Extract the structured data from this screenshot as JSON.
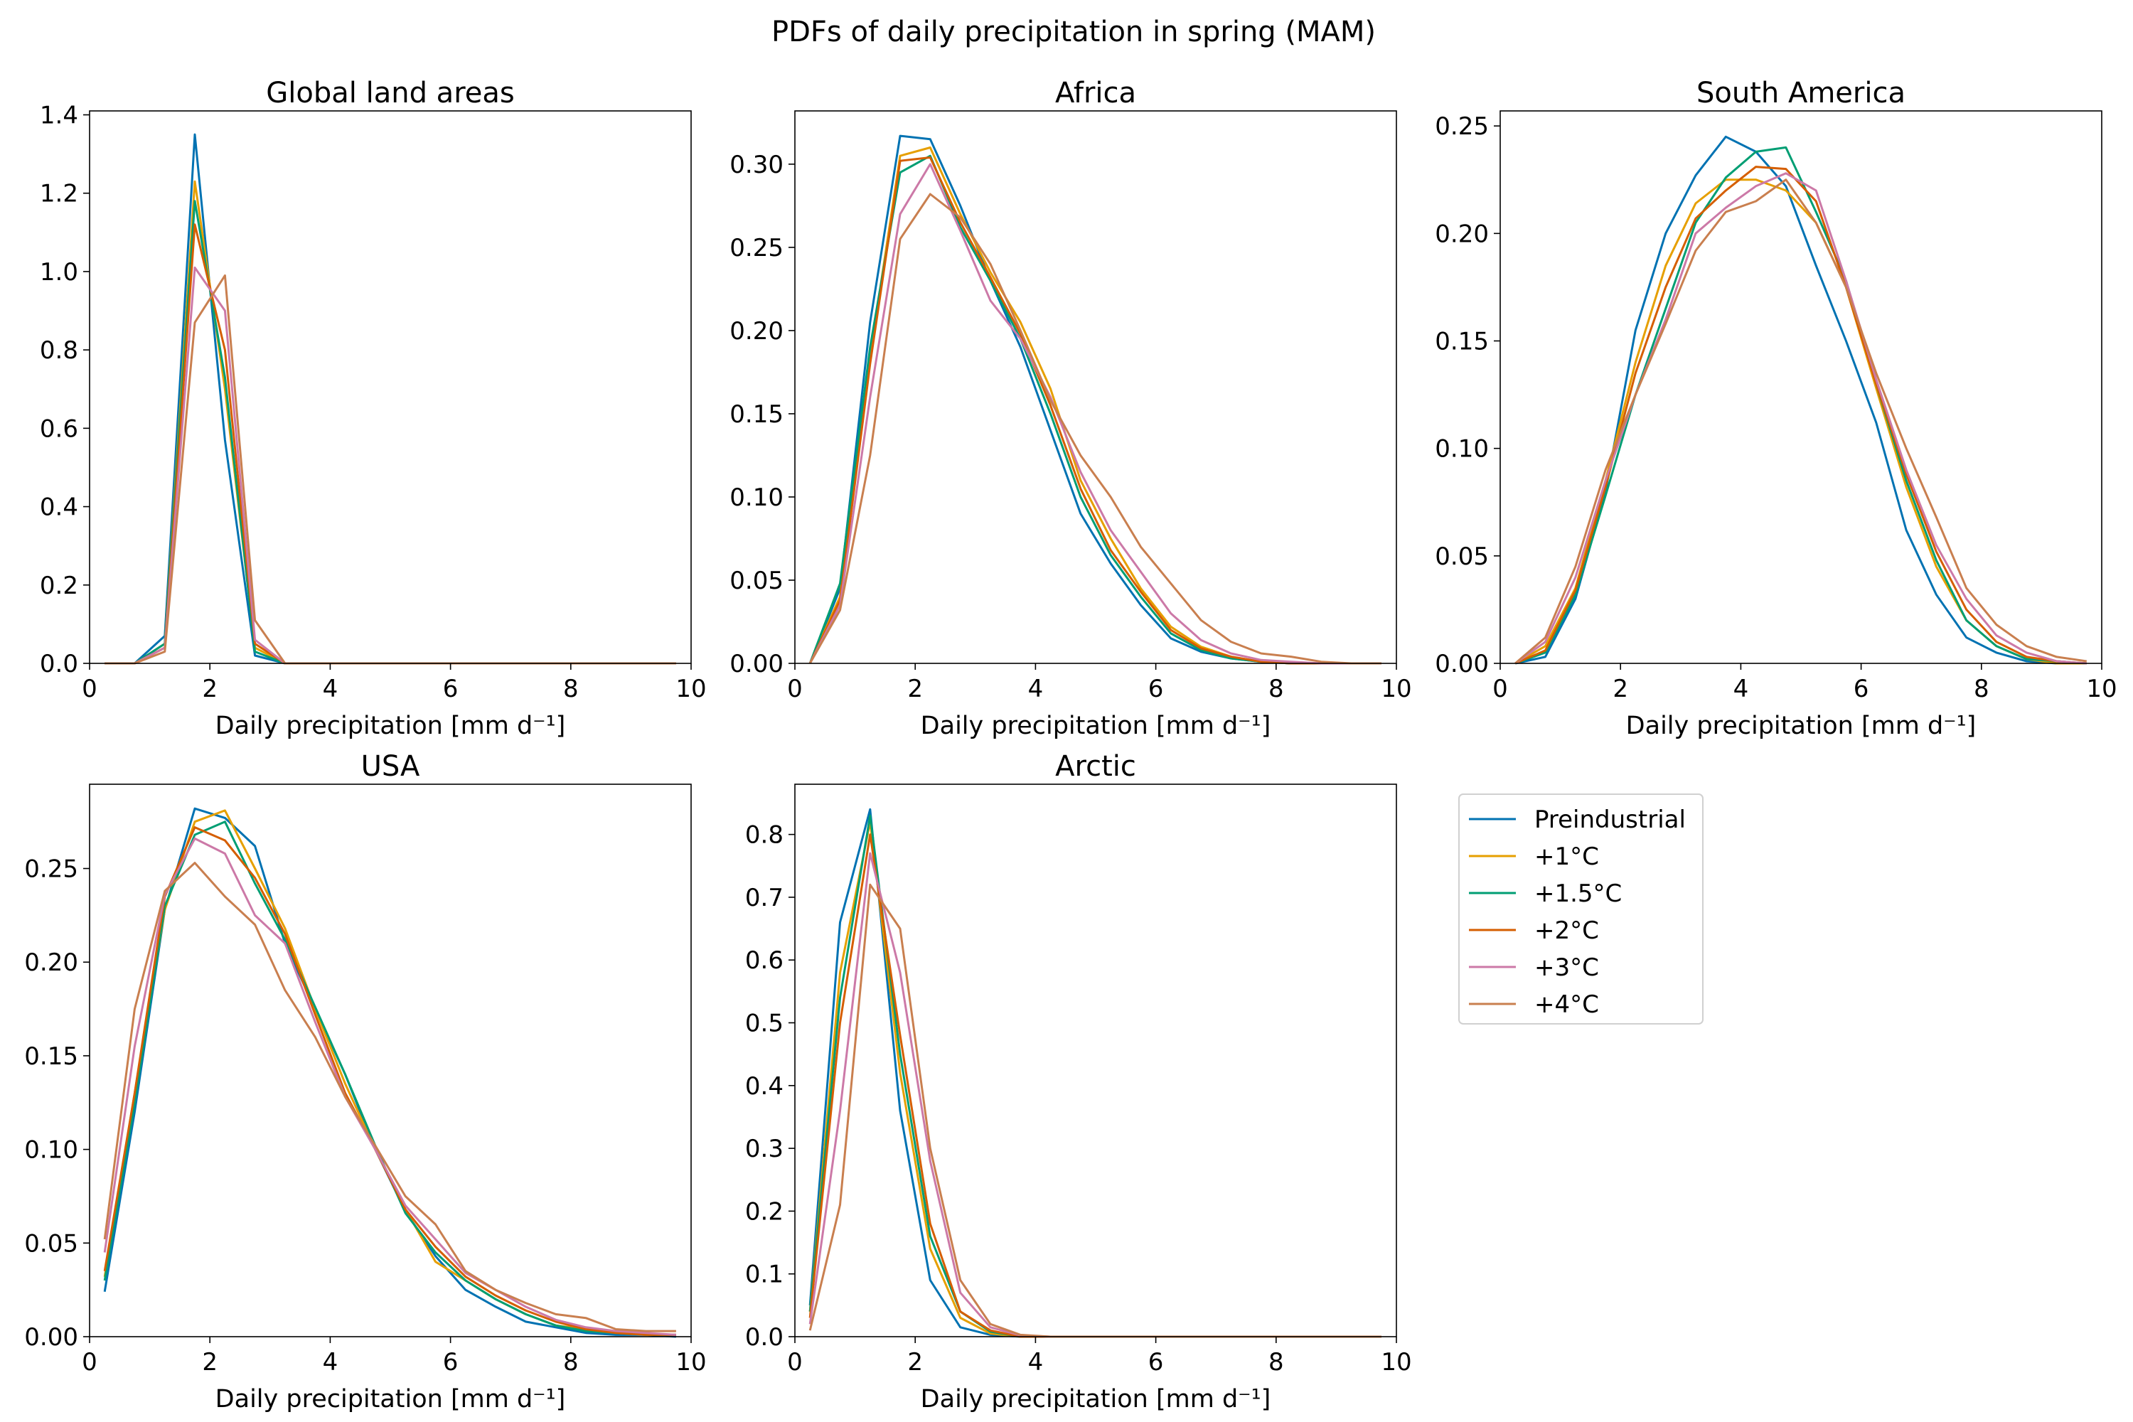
{
  "figure": {
    "title": "PDFs of daily precipitation in spring (MAM)"
  },
  "colors": {
    "Preindustrial": "#0072B2",
    "+1°C": "#E69F00",
    "+1.5°C": "#009E73",
    "+2°C": "#D55E00",
    "+3°C": "#CC79A7",
    "+4°C": "#C97F4F"
  },
  "legend": {
    "entries": [
      "Preindustrial",
      "+1°C",
      "+1.5°C",
      "+2°C",
      "+3°C",
      "+4°C"
    ],
    "placement": "right of Arctic panel"
  },
  "chart_data": [
    {
      "type": "line",
      "title": "Global land areas",
      "xlabel": "Daily precipitation [mm d⁻¹]",
      "ylabel": "",
      "xlim": [
        0,
        10
      ],
      "ylim": [
        0,
        1.41
      ],
      "xticks": [
        0,
        2,
        4,
        6,
        8,
        10
      ],
      "yticks": [
        0.0,
        0.2,
        0.4,
        0.6,
        0.8,
        1.0,
        1.2,
        1.4
      ],
      "ytick_labels": [
        "0.0",
        "0.2",
        "0.4",
        "0.6",
        "0.8",
        "1.0",
        "1.2",
        "1.4"
      ],
      "x": [
        0.25,
        0.75,
        1.25,
        1.75,
        2.25,
        2.75,
        3.25,
        3.75,
        4.25,
        4.75,
        5.25,
        5.75,
        6.25,
        6.75,
        7.25,
        7.75,
        8.25,
        8.75,
        9.25,
        9.75
      ],
      "series": [
        {
          "name": "Preindustrial",
          "values": [
            0,
            0,
            0.07,
            1.35,
            0.57,
            0.02,
            0,
            0,
            0,
            0,
            0,
            0,
            0,
            0,
            0,
            0,
            0,
            0,
            0,
            0
          ]
        },
        {
          "name": "+1°C",
          "values": [
            0,
            0,
            0.05,
            1.23,
            0.7,
            0.04,
            0,
            0,
            0,
            0,
            0,
            0,
            0,
            0,
            0,
            0,
            0,
            0,
            0,
            0
          ]
        },
        {
          "name": "+1.5°C",
          "values": [
            0,
            0,
            0.05,
            1.18,
            0.73,
            0.03,
            0,
            0,
            0,
            0,
            0,
            0,
            0,
            0,
            0,
            0,
            0,
            0,
            0,
            0
          ]
        },
        {
          "name": "+2°C",
          "values": [
            0,
            0,
            0.04,
            1.12,
            0.8,
            0.05,
            0,
            0,
            0,
            0,
            0,
            0,
            0,
            0,
            0,
            0,
            0,
            0,
            0,
            0
          ]
        },
        {
          "name": "+3°C",
          "values": [
            0,
            0,
            0.04,
            1.01,
            0.9,
            0.06,
            0,
            0,
            0,
            0,
            0,
            0,
            0,
            0,
            0,
            0,
            0,
            0,
            0,
            0
          ]
        },
        {
          "name": "+4°C",
          "values": [
            0,
            0,
            0.03,
            0.87,
            0.99,
            0.11,
            0,
            0,
            0,
            0,
            0,
            0,
            0,
            0,
            0,
            0,
            0,
            0,
            0,
            0
          ]
        }
      ]
    },
    {
      "type": "line",
      "title": "Africa",
      "xlabel": "Daily precipitation [mm d⁻¹]",
      "ylabel": "",
      "xlim": [
        0,
        10
      ],
      "ylim": [
        0,
        0.332
      ],
      "xticks": [
        0,
        2,
        4,
        6,
        8,
        10
      ],
      "yticks": [
        0.0,
        0.05,
        0.1,
        0.15,
        0.2,
        0.25,
        0.3
      ],
      "ytick_labels": [
        "0.00",
        "0.05",
        "0.10",
        "0.15",
        "0.20",
        "0.25",
        "0.30"
      ],
      "x": [
        0.25,
        0.75,
        1.25,
        1.75,
        2.25,
        2.75,
        3.25,
        3.75,
        4.25,
        4.75,
        5.25,
        5.75,
        6.25,
        6.75,
        7.25,
        7.75,
        8.25,
        8.75,
        9.25,
        9.75
      ],
      "series": [
        {
          "name": "Preindustrial",
          "values": [
            0,
            0.045,
            0.205,
            0.317,
            0.315,
            0.275,
            0.23,
            0.19,
            0.14,
            0.09,
            0.06,
            0.035,
            0.015,
            0.007,
            0.003,
            0.001,
            0,
            0,
            0,
            0
          ]
        },
        {
          "name": "+1°C",
          "values": [
            0,
            0.04,
            0.185,
            0.305,
            0.31,
            0.27,
            0.235,
            0.205,
            0.165,
            0.11,
            0.075,
            0.045,
            0.022,
            0.01,
            0.004,
            0.001,
            0,
            0,
            0,
            0
          ]
        },
        {
          "name": "+1.5°C",
          "values": [
            0,
            0.048,
            0.19,
            0.295,
            0.305,
            0.262,
            0.23,
            0.195,
            0.15,
            0.1,
            0.065,
            0.04,
            0.018,
            0.008,
            0.003,
            0.001,
            0,
            0,
            0,
            0
          ]
        },
        {
          "name": "+2°C",
          "values": [
            0,
            0.038,
            0.18,
            0.302,
            0.304,
            0.265,
            0.232,
            0.198,
            0.155,
            0.105,
            0.068,
            0.043,
            0.02,
            0.009,
            0.004,
            0.001,
            0,
            0,
            0,
            0
          ]
        },
        {
          "name": "+3°C",
          "values": [
            0,
            0.035,
            0.16,
            0.27,
            0.3,
            0.26,
            0.218,
            0.195,
            0.16,
            0.115,
            0.08,
            0.055,
            0.03,
            0.014,
            0.006,
            0.002,
            0.001,
            0,
            0,
            0
          ]
        },
        {
          "name": "+4°C",
          "values": [
            0,
            0.032,
            0.125,
            0.255,
            0.282,
            0.268,
            0.24,
            0.2,
            0.158,
            0.125,
            0.1,
            0.07,
            0.048,
            0.026,
            0.013,
            0.006,
            0.004,
            0.001,
            0,
            0
          ]
        }
      ]
    },
    {
      "type": "line",
      "title": "South America",
      "xlabel": "Daily precipitation [mm d⁻¹]",
      "ylabel": "",
      "xlim": [
        0,
        10
      ],
      "ylim": [
        0,
        0.257
      ],
      "xticks": [
        0,
        2,
        4,
        6,
        8,
        10
      ],
      "yticks": [
        0.0,
        0.05,
        0.1,
        0.15,
        0.2,
        0.25
      ],
      "ytick_labels": [
        "0.00",
        "0.05",
        "0.10",
        "0.15",
        "0.20",
        "0.25"
      ],
      "x": [
        0.25,
        0.75,
        1.25,
        1.75,
        2.25,
        2.75,
        3.25,
        3.75,
        4.25,
        4.75,
        5.25,
        5.75,
        6.25,
        6.75,
        7.25,
        7.75,
        8.25,
        8.75,
        9.25,
        9.75
      ],
      "series": [
        {
          "name": "Preindustrial",
          "values": [
            0,
            0.003,
            0.03,
            0.08,
            0.155,
            0.2,
            0.227,
            0.245,
            0.238,
            0.222,
            0.185,
            0.15,
            0.112,
            0.062,
            0.032,
            0.012,
            0.005,
            0.001,
            0,
            0
          ]
        },
        {
          "name": "+1°C",
          "values": [
            0,
            0.008,
            0.035,
            0.085,
            0.14,
            0.185,
            0.214,
            0.225,
            0.225,
            0.22,
            0.205,
            0.175,
            0.128,
            0.082,
            0.045,
            0.02,
            0.008,
            0.002,
            0,
            0
          ]
        },
        {
          "name": "+1.5°C",
          "values": [
            0,
            0.005,
            0.032,
            0.078,
            0.125,
            0.165,
            0.205,
            0.226,
            0.238,
            0.24,
            0.21,
            0.178,
            0.13,
            0.085,
            0.048,
            0.02,
            0.008,
            0.002,
            0.001,
            0
          ]
        },
        {
          "name": "+2°C",
          "values": [
            0,
            0.006,
            0.034,
            0.082,
            0.135,
            0.175,
            0.207,
            0.22,
            0.231,
            0.23,
            0.215,
            0.175,
            0.13,
            0.088,
            0.052,
            0.025,
            0.01,
            0.003,
            0.001,
            0
          ]
        },
        {
          "name": "+3°C",
          "values": [
            0,
            0.01,
            0.04,
            0.085,
            0.125,
            0.16,
            0.2,
            0.212,
            0.222,
            0.228,
            0.22,
            0.178,
            0.132,
            0.09,
            0.055,
            0.03,
            0.013,
            0.005,
            0.001,
            0
          ]
        },
        {
          "name": "+4°C",
          "values": [
            0,
            0.012,
            0.045,
            0.09,
            0.125,
            0.158,
            0.192,
            0.21,
            0.215,
            0.225,
            0.205,
            0.175,
            0.135,
            0.1,
            0.068,
            0.035,
            0.018,
            0.008,
            0.003,
            0.001
          ]
        }
      ]
    },
    {
      "type": "line",
      "title": "USA",
      "xlabel": "Daily precipitation [mm d⁻¹]",
      "ylabel": "",
      "xlim": [
        0,
        10
      ],
      "ylim": [
        0,
        0.295
      ],
      "xticks": [
        0,
        2,
        4,
        6,
        8,
        10
      ],
      "yticks": [
        0.0,
        0.05,
        0.1,
        0.15,
        0.2,
        0.25
      ],
      "ytick_labels": [
        "0.00",
        "0.05",
        "0.10",
        "0.15",
        "0.20",
        "0.25"
      ],
      "x": [
        0.25,
        0.75,
        1.25,
        1.75,
        2.25,
        2.75,
        3.25,
        3.75,
        4.25,
        4.75,
        5.25,
        5.75,
        6.25,
        6.75,
        7.25,
        7.75,
        8.25,
        8.75,
        9.25,
        9.75
      ],
      "series": [
        {
          "name": "Preindustrial",
          "values": [
            0.024,
            0.12,
            0.228,
            0.282,
            0.277,
            0.262,
            0.21,
            0.175,
            0.14,
            0.1,
            0.067,
            0.043,
            0.025,
            0.016,
            0.008,
            0.005,
            0.002,
            0.001,
            0.001,
            0
          ]
        },
        {
          "name": "+1°C",
          "values": [
            0.032,
            0.13,
            0.228,
            0.275,
            0.281,
            0.25,
            0.218,
            0.175,
            0.135,
            0.1,
            0.068,
            0.04,
            0.03,
            0.02,
            0.012,
            0.006,
            0.004,
            0.002,
            0.001,
            0.001
          ]
        },
        {
          "name": "+1.5°C",
          "values": [
            0.03,
            0.125,
            0.23,
            0.268,
            0.275,
            0.242,
            0.212,
            0.176,
            0.14,
            0.102,
            0.066,
            0.045,
            0.03,
            0.02,
            0.012,
            0.006,
            0.003,
            0.002,
            0.001,
            0.001
          ]
        },
        {
          "name": "+2°C",
          "values": [
            0.035,
            0.13,
            0.235,
            0.272,
            0.265,
            0.245,
            0.215,
            0.172,
            0.13,
            0.1,
            0.068,
            0.048,
            0.032,
            0.022,
            0.014,
            0.008,
            0.004,
            0.002,
            0.001,
            0.001
          ]
        },
        {
          "name": "+3°C",
          "values": [
            0.045,
            0.155,
            0.236,
            0.266,
            0.258,
            0.225,
            0.21,
            0.168,
            0.128,
            0.1,
            0.07,
            0.052,
            0.034,
            0.025,
            0.016,
            0.009,
            0.005,
            0.003,
            0.002,
            0.001
          ]
        },
        {
          "name": "+4°C",
          "values": [
            0.052,
            0.175,
            0.238,
            0.253,
            0.235,
            0.22,
            0.185,
            0.16,
            0.128,
            0.102,
            0.075,
            0.06,
            0.035,
            0.025,
            0.018,
            0.012,
            0.01,
            0.004,
            0.003,
            0.003
          ]
        }
      ]
    },
    {
      "type": "line",
      "title": "Arctic",
      "xlabel": "Daily precipitation [mm d⁻¹]",
      "ylabel": "",
      "xlim": [
        0,
        10
      ],
      "ylim": [
        0,
        0.88
      ],
      "xticks": [
        0,
        2,
        4,
        6,
        8,
        10
      ],
      "yticks": [
        0.0,
        0.1,
        0.2,
        0.3,
        0.4,
        0.5,
        0.6,
        0.7,
        0.8
      ],
      "ytick_labels": [
        "0.0",
        "0.1",
        "0.2",
        "0.3",
        "0.4",
        "0.5",
        "0.6",
        "0.7",
        "0.8"
      ],
      "x": [
        0.25,
        0.75,
        1.25,
        1.75,
        2.25,
        2.75,
        3.25,
        3.75,
        4.25,
        4.75,
        5.25,
        5.75,
        6.25,
        6.75,
        7.25,
        7.75,
        8.25,
        8.75,
        9.25,
        9.75
      ],
      "series": [
        {
          "name": "Preindustrial",
          "values": [
            0.05,
            0.66,
            0.84,
            0.36,
            0.09,
            0.015,
            0.003,
            0,
            0,
            0,
            0,
            0,
            0,
            0,
            0,
            0,
            0,
            0,
            0,
            0
          ]
        },
        {
          "name": "+1°C",
          "values": [
            0.04,
            0.58,
            0.82,
            0.42,
            0.14,
            0.03,
            0.005,
            0,
            0,
            0,
            0,
            0,
            0,
            0,
            0,
            0,
            0,
            0,
            0,
            0
          ]
        },
        {
          "name": "+1.5°C",
          "values": [
            0.04,
            0.54,
            0.83,
            0.45,
            0.16,
            0.04,
            0.008,
            0,
            0,
            0,
            0,
            0,
            0,
            0,
            0,
            0,
            0,
            0,
            0,
            0
          ]
        },
        {
          "name": "+2°C",
          "values": [
            0.03,
            0.5,
            0.8,
            0.48,
            0.18,
            0.04,
            0.01,
            0,
            0,
            0,
            0,
            0,
            0,
            0,
            0,
            0,
            0,
            0,
            0,
            0
          ]
        },
        {
          "name": "+3°C",
          "values": [
            0.02,
            0.36,
            0.77,
            0.58,
            0.28,
            0.07,
            0.015,
            0.002,
            0,
            0,
            0,
            0,
            0,
            0,
            0,
            0,
            0,
            0,
            0,
            0
          ]
        },
        {
          "name": "+4°C",
          "values": [
            0.01,
            0.21,
            0.72,
            0.65,
            0.3,
            0.09,
            0.02,
            0.003,
            0,
            0,
            0,
            0,
            0,
            0,
            0,
            0,
            0,
            0,
            0,
            0
          ]
        }
      ]
    }
  ]
}
